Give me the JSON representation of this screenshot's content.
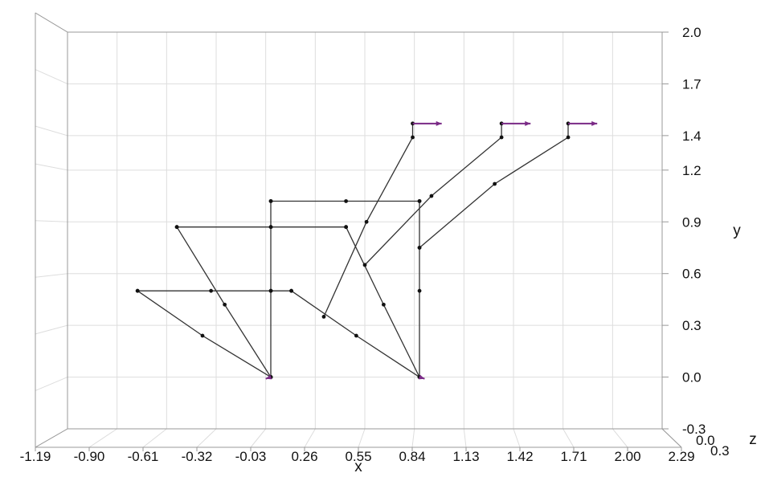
{
  "chart_data": {
    "type": "line",
    "title": "",
    "axes": {
      "x": {
        "label": "x",
        "range": [
          -1.19,
          2.29
        ],
        "ticks": [
          "-1.19",
          "-0.90",
          "-0.61",
          "-0.32",
          "-0.03",
          "0.26",
          "0.55",
          "0.84",
          "1.13",
          "1.42",
          "1.71",
          "2.00",
          "2.29"
        ]
      },
      "y": {
        "label": "y",
        "range": [
          -0.3,
          2.0
        ],
        "ticks": [
          "-0.3",
          "0.0",
          "0.3",
          "0.6",
          "0.9",
          "1.2",
          "1.4",
          "1.7",
          "2.0"
        ]
      },
      "z": {
        "label": "z",
        "ticks": [
          "0.0",
          "0.3"
        ]
      }
    },
    "grid": true,
    "series": [
      {
        "values": [
          [
            0.0,
            0.0
          ],
          [
            -0.27,
            0.42
          ],
          [
            -0.55,
            0.87
          ]
        ]
      },
      {
        "values": [
          [
            0.0,
            0.0
          ],
          [
            -0.4,
            0.24
          ],
          [
            -0.78,
            0.5
          ]
        ]
      },
      {
        "values": [
          [
            -0.78,
            0.5
          ],
          [
            -0.35,
            0.5
          ],
          [
            0.0,
            0.5
          ],
          [
            0.12,
            0.5
          ]
        ]
      },
      {
        "values": [
          [
            0.12,
            0.5
          ],
          [
            0.5,
            0.24
          ],
          [
            0.87,
            0.0
          ]
        ]
      },
      {
        "values": [
          [
            0.0,
            0.0
          ],
          [
            0.0,
            0.5
          ],
          [
            0.0,
            0.87
          ],
          [
            0.0,
            1.02
          ]
        ]
      },
      {
        "values": [
          [
            -0.55,
            0.87
          ],
          [
            0.0,
            0.87
          ],
          [
            0.44,
            0.87
          ]
        ]
      },
      {
        "values": [
          [
            0.44,
            0.87
          ],
          [
            0.66,
            0.42
          ],
          [
            0.87,
            0.0
          ]
        ]
      },
      {
        "values": [
          [
            0.0,
            1.02
          ],
          [
            0.44,
            1.02
          ],
          [
            0.87,
            1.02
          ]
        ]
      },
      {
        "values": [
          [
            0.87,
            1.02
          ],
          [
            0.87,
            0.75
          ],
          [
            0.87,
            0.5
          ],
          [
            0.87,
            0.0
          ]
        ]
      },
      {
        "values": [
          [
            0.31,
            0.35
          ],
          [
            0.56,
            0.9
          ],
          [
            0.83,
            1.39
          ],
          [
            0.83,
            1.47
          ]
        ]
      },
      {
        "values": [
          [
            0.55,
            0.65
          ],
          [
            0.94,
            1.05
          ],
          [
            1.35,
            1.39
          ],
          [
            1.35,
            1.47
          ]
        ]
      },
      {
        "values": [
          [
            0.87,
            0.75
          ],
          [
            1.31,
            1.12
          ],
          [
            1.74,
            1.39
          ],
          [
            1.74,
            1.47
          ]
        ]
      }
    ],
    "arrows": [
      {
        "from": [
          0.83,
          1.47
        ],
        "to": [
          1.0,
          1.47
        ]
      },
      {
        "from": [
          1.35,
          1.47
        ],
        "to": [
          1.52,
          1.47
        ]
      },
      {
        "from": [
          1.74,
          1.47
        ],
        "to": [
          1.91,
          1.47
        ]
      },
      {
        "from": [
          0.0,
          0.0
        ],
        "to": [
          -0.03,
          -0.01
        ]
      },
      {
        "from": [
          0.87,
          0.0
        ],
        "to": [
          0.9,
          -0.01
        ]
      }
    ],
    "colors": {
      "line": "#333333",
      "point": "#111111",
      "arrow": "#7a2a86",
      "grid": "#dddddd",
      "box": "#999999"
    }
  }
}
